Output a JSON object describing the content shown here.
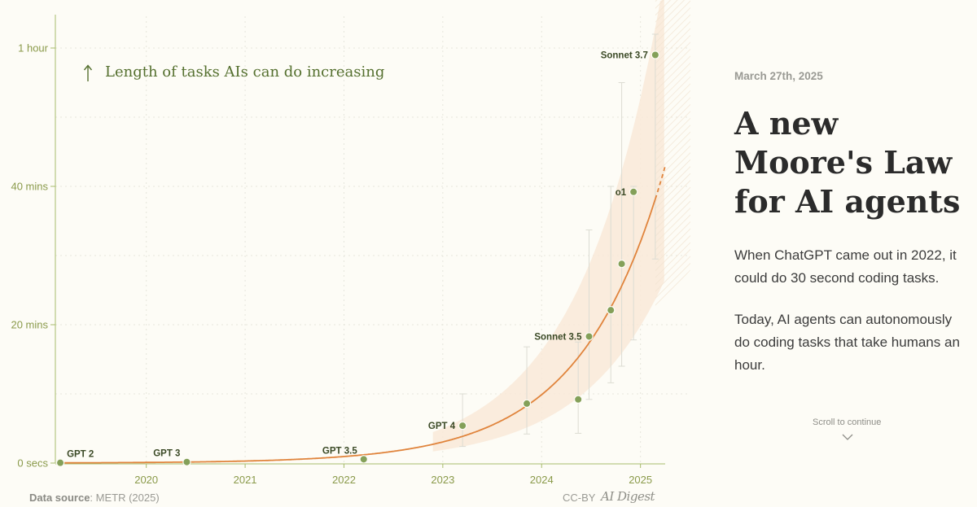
{
  "chart_data": {
    "type": "scatter",
    "annotation": "Length of tasks AIs can do increasing",
    "x_ticks": [
      "2020",
      "2021",
      "2022",
      "2023",
      "2024",
      "2025"
    ],
    "x_tick_values": [
      2020,
      2021,
      2022,
      2023,
      2024,
      2025
    ],
    "xlim": [
      2019.08,
      2025.25
    ],
    "y_ticks": [
      "0 secs",
      "20 mins",
      "40 mins",
      "1 hour"
    ],
    "y_tick_values": [
      0,
      20,
      40,
      60
    ],
    "ylim": [
      0,
      60
    ],
    "y_unit": "minutes",
    "points": [
      {
        "label": "GPT 2",
        "x": 2019.13,
        "y": 0.04
      },
      {
        "label": "GPT 3",
        "x": 2020.41,
        "y": 0.15
      },
      {
        "label": "GPT 3.5",
        "x": 2022.2,
        "y": 0.55
      },
      {
        "label": "GPT 4",
        "x": 2023.2,
        "y": 5.4,
        "err": [
          2.4,
          10.0
        ]
      },
      {
        "label": "",
        "x": 2023.85,
        "y": 8.6,
        "err": [
          4.2,
          16.8
        ]
      },
      {
        "label": "",
        "x": 2024.37,
        "y": 9.2,
        "err": [
          4.3,
          17.5
        ]
      },
      {
        "label": "Sonnet 3.5",
        "x": 2024.48,
        "y": 18.3,
        "err": [
          9.2,
          33.7
        ]
      },
      {
        "label": "",
        "x": 2024.7,
        "y": 22.1,
        "err": [
          11.6,
          40.0
        ]
      },
      {
        "label": "",
        "x": 2024.81,
        "y": 28.8,
        "err": [
          14.0,
          55.0
        ]
      },
      {
        "label": "o1",
        "x": 2024.93,
        "y": 39.2,
        "err": [
          17.8,
          40.0
        ]
      },
      {
        "label": "Sonnet 3.7",
        "x": 2025.15,
        "y": 59.0,
        "err": [
          29.5,
          62.0
        ]
      }
    ],
    "trend": {
      "model": "exponential",
      "a_minutes": 32,
      "x0": 2025,
      "doubling_years": 0.59,
      "solid_until": 2025.15,
      "dashed_until": 2025.25
    },
    "grid": true,
    "colors": {
      "trend": "#e0843c",
      "point": "#84a059",
      "axis": "#a8bb6c",
      "band": "#f9e9d8",
      "errorbar": "#dcdcd3"
    }
  },
  "footer": {
    "source_label": "Data source",
    "source_value": ": METR (2025)",
    "license": "CC-BY",
    "brand": "AI Digest"
  },
  "panel": {
    "date": "March 27th, 2025",
    "title": "A new Moore's Law for AI agents",
    "para1": "When ChatGPT came out in 2022, it could do 30 second coding tasks.",
    "para2": "Today, AI agents can autonomously do coding tasks that take humans an hour.",
    "scroll_hint": "Scroll to continue"
  },
  "icons": {
    "arrow": "up-arrow-icon",
    "chevron": "chevron-down-icon"
  }
}
